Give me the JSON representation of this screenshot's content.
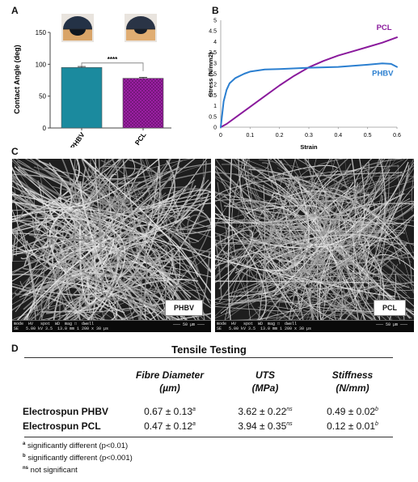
{
  "panels": {
    "a": "A",
    "b": "B",
    "c": "C",
    "d": "D"
  },
  "chart_data": [
    {
      "type": "bar",
      "categories": [
        "PHBV",
        "PCL"
      ],
      "values": [
        95,
        78
      ],
      "errors": [
        1.5,
        1.5
      ],
      "ylabel": "Contact Angle (deg)",
      "ylim": [
        0,
        150
      ],
      "yticks": [
        "0",
        "50",
        "100",
        "150"
      ],
      "colors": [
        "#1b8a9e",
        "#a020a8"
      ],
      "significance": "****",
      "grid": false
    },
    {
      "type": "line",
      "xlabel": "Strain",
      "ylabel": "Stress (N/mm2)",
      "xlim": [
        0,
        0.6
      ],
      "ylim": [
        0,
        5
      ],
      "xticks": [
        "0",
        "0.1",
        "0.2",
        "0.3",
        "0.4",
        "0.5",
        "0.6"
      ],
      "yticks": [
        "0",
        "0.5",
        "1",
        "1.5",
        "2",
        "2.5",
        "3",
        "3.5",
        "4",
        "4.5",
        "5"
      ],
      "grid": false,
      "series": [
        {
          "name": "PCL",
          "color": "#8a1a9c",
          "x": [
            0,
            0.02,
            0.05,
            0.1,
            0.15,
            0.2,
            0.25,
            0.3,
            0.35,
            0.4,
            0.45,
            0.5,
            0.55,
            0.6
          ],
          "y": [
            0,
            0.15,
            0.45,
            0.95,
            1.45,
            1.95,
            2.4,
            2.8,
            3.1,
            3.35,
            3.55,
            3.75,
            3.95,
            4.2
          ]
        },
        {
          "name": "PHBV",
          "color": "#2b7fd0",
          "x": [
            0,
            0.005,
            0.01,
            0.02,
            0.03,
            0.05,
            0.08,
            0.1,
            0.15,
            0.2,
            0.3,
            0.4,
            0.5,
            0.55,
            0.58,
            0.6
          ],
          "y": [
            0,
            0.6,
            1.2,
            1.75,
            2.05,
            2.3,
            2.5,
            2.6,
            2.7,
            2.72,
            2.78,
            2.82,
            2.92,
            2.98,
            2.96,
            2.82
          ]
        }
      ]
    }
  ],
  "sem": [
    {
      "label": "PHBV",
      "meta": "mode  HV   spot  WD  mag □  dwell\nSE   5.00 kV 3.5  13.0 mm 1 200 x 30 µs",
      "scale": "——— 50 µm ———"
    },
    {
      "label": "PCL",
      "meta": "mode  HV   spot  WD  mag □  dwell\nSE   5.00 kV 3.5  13.0 mm 1 200 x 30 µs",
      "scale": "——— 50 µm ———"
    }
  ],
  "table": {
    "title": "Tensile Testing",
    "headers": [
      {
        "l1": "Fibre Diameter",
        "l2": "(µm)"
      },
      {
        "l1": "UTS",
        "l2": "(MPa)"
      },
      {
        "l1": "Stiffness",
        "l2": "(N/mm)"
      }
    ],
    "rows": [
      {
        "label": "Electrospun PHBV",
        "cells": [
          {
            "v": "0.67 ± 0.13",
            "s": "a"
          },
          {
            "v": "3.62 ± 0.22",
            "s": "ns"
          },
          {
            "v": "0.49 ± 0.02",
            "s": "b"
          }
        ]
      },
      {
        "label": "Electrospun PCL",
        "cells": [
          {
            "v": "0.47 ± 0.12",
            "s": "a"
          },
          {
            "v": "3.94 ± 0.35",
            "s": "ns"
          },
          {
            "v": "0.12 ± 0.01",
            "s": "b"
          }
        ]
      }
    ],
    "notes": [
      {
        "sup": "a",
        "text": "significantly different (p<0.01)"
      },
      {
        "sup": "b",
        "text": "significantly different (p<0.001)"
      },
      {
        "sup": "ns",
        "text": "not significant"
      }
    ]
  }
}
